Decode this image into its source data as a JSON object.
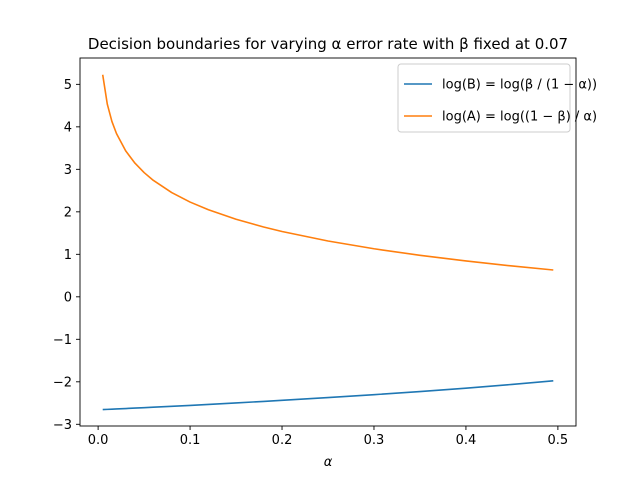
{
  "chart_data": {
    "type": "line",
    "title": "Decision boundaries for varying α error rate with β fixed at 0.07",
    "xlabel": "α",
    "ylabel": "",
    "xlim": [
      -0.0197,
      0.5197
    ],
    "ylim": [
      -3.04,
      5.62
    ],
    "xticks": [
      "0.0",
      "0.1",
      "0.2",
      "0.3",
      "0.4",
      "0.5"
    ],
    "xtick_values": [
      0.0,
      0.1,
      0.2,
      0.3,
      0.4,
      0.5
    ],
    "yticks": [
      "−3",
      "−2",
      "−1",
      "0",
      "1",
      "2",
      "3",
      "4",
      "5"
    ],
    "ytick_values": [
      -3,
      -2,
      -1,
      0,
      1,
      2,
      3,
      4,
      5
    ],
    "grid": false,
    "legend_position": "top-right",
    "x": [
      0.005,
      0.01,
      0.015,
      0.02,
      0.03,
      0.04,
      0.05,
      0.06,
      0.08,
      0.1,
      0.12,
      0.15,
      0.18,
      0.2,
      0.25,
      0.3,
      0.35,
      0.4,
      0.45,
      0.495
    ],
    "series": [
      {
        "name": "log(B) = log(β / (1 − α))",
        "color": "#1f77b4",
        "values": [
          -2.654,
          -2.649,
          -2.644,
          -2.639,
          -2.629,
          -2.619,
          -2.608,
          -2.598,
          -2.576,
          -2.555,
          -2.532,
          -2.497,
          -2.461,
          -2.436,
          -2.372,
          -2.303,
          -2.229,
          -2.149,
          -2.062,
          -1.977
        ]
      },
      {
        "name": "log(A) = log((1 − β) / α)",
        "color": "#ff7f0e",
        "values": [
          5.225,
          4.533,
          4.127,
          3.84,
          3.434,
          3.147,
          2.924,
          2.741,
          2.454,
          2.23,
          2.048,
          1.825,
          1.643,
          1.537,
          1.314,
          1.131,
          0.977,
          0.844,
          0.726,
          0.631
        ]
      }
    ]
  }
}
